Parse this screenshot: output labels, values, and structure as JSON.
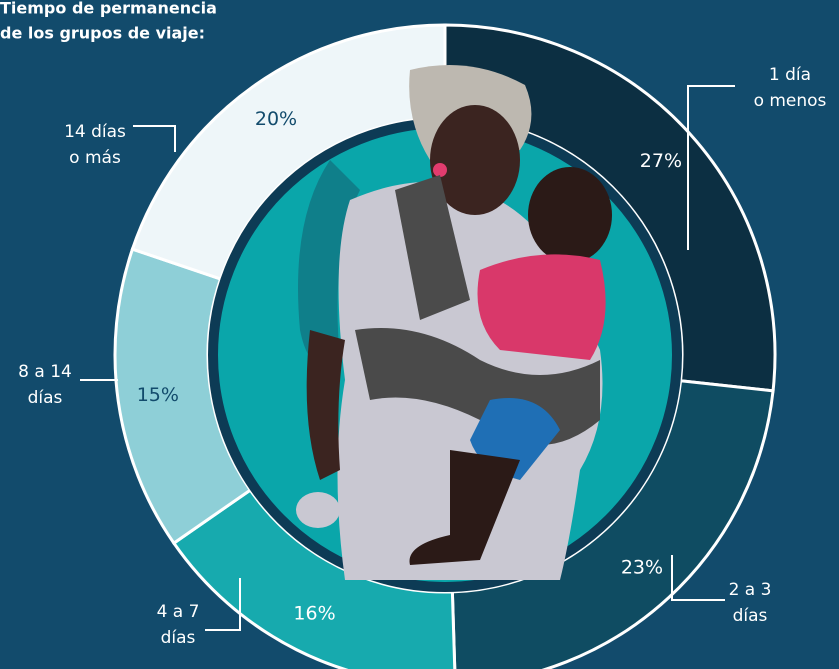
{
  "chart_data": {
    "type": "donut",
    "title": [
      "Tiempo de permanencia",
      "de los grupos de viaje:"
    ],
    "categories": [
      [
        "1 día",
        "o menos"
      ],
      [
        "2 a 3",
        "días"
      ],
      [
        "4 a 7",
        "días"
      ],
      [
        "8 a 14",
        "días"
      ],
      [
        "14 días",
        "o más"
      ]
    ],
    "values": [
      27,
      23,
      16,
      15,
      20
    ],
    "value_labels": [
      "27%",
      "23%",
      "16%",
      "15%",
      "20%"
    ],
    "colors": [
      "#0c2f42",
      "#0f4c62",
      "#17aaae",
      "#8ecfd7",
      "#eef6f9"
    ]
  }
}
